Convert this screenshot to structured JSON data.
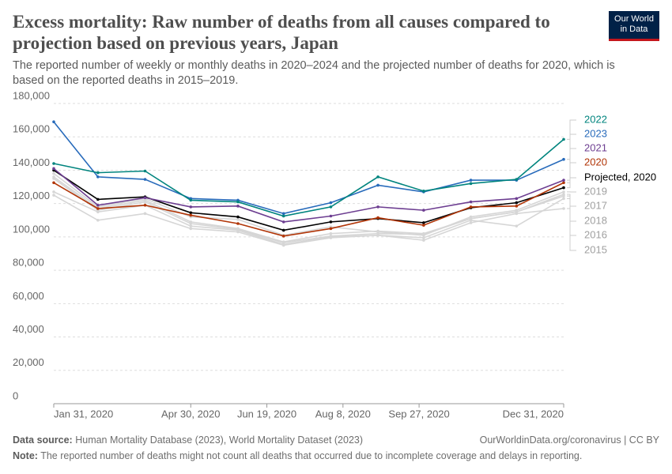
{
  "header": {
    "title": "Excess mortality: Raw number of deaths from all causes compared to projection based on previous years, Japan",
    "subtitle": "The reported number of weekly or monthly deaths in 2020–2024 and the projected number of deaths for 2020, which is based on the reported deaths in 2015–2019.",
    "logo": [
      "Our World",
      "in Data"
    ]
  },
  "chart_data": {
    "type": "line",
    "x": [
      "2020-01-31",
      "2020-02-29",
      "2020-03-31",
      "2020-04-30",
      "2020-05-31",
      "2020-06-30",
      "2020-07-31",
      "2020-08-31",
      "2020-09-30",
      "2020-10-31",
      "2020-11-30",
      "2020-12-31"
    ],
    "xlim": [
      "2020-01-31",
      "2020-12-31"
    ],
    "xticks": [
      {
        "value": "2020-01-31",
        "label": "Jan 31, 2020"
      },
      {
        "value": "2020-04-30",
        "label": "Apr 30, 2020"
      },
      {
        "value": "2020-06-19",
        "label": "Jun 19, 2020"
      },
      {
        "value": "2020-08-08",
        "label": "Aug 8, 2020"
      },
      {
        "value": "2020-09-27",
        "label": "Sep 27, 2020"
      },
      {
        "value": "2020-12-31",
        "label": "Dec 31, 2020"
      }
    ],
    "ylim": [
      0,
      180000
    ],
    "yticks": [
      0,
      {
        "value": 20000,
        "label": "20,000"
      },
      {
        "value": 40000,
        "label": "40,000"
      },
      {
        "value": 60000,
        "label": "60,000"
      },
      {
        "value": 80000,
        "label": "80,000"
      },
      {
        "value": 100000,
        "label": "100,000"
      },
      {
        "value": 120000,
        "label": "120,000"
      },
      {
        "value": 140000,
        "label": "140,000"
      },
      {
        "value": 160000,
        "label": "160,000"
      },
      {
        "value": 180000,
        "label": "180,000"
      }
    ],
    "grid": true,
    "series": [
      {
        "name": "2022",
        "color": "#00847e",
        "values": [
          144000,
          138500,
          139500,
          122000,
          121000,
          112500,
          118000,
          136000,
          127500,
          132000,
          134500,
          158500
        ]
      },
      {
        "name": "2023",
        "color": "#286bbb",
        "values": [
          169000,
          136000,
          134500,
          123000,
          122000,
          114000,
          120500,
          131000,
          127000,
          134000,
          134000,
          146500
        ]
      },
      {
        "name": "2021",
        "color": "#6d3e91",
        "values": [
          141000,
          119000,
          123500,
          118000,
          118500,
          109000,
          112500,
          118000,
          116000,
          121000,
          123000,
          134000
        ]
      },
      {
        "name": "2020",
        "color": "#b13507",
        "values": [
          132500,
          117000,
          119000,
          113000,
          108000,
          100500,
          105000,
          111500,
          107000,
          118000,
          118500,
          132500
        ]
      },
      {
        "name": "Projected, 2020",
        "color": "#000000",
        "values": [
          140000,
          122500,
          124000,
          114500,
          112000,
          104000,
          109000,
          111000,
          108500,
          117500,
          120500,
          129500
        ]
      },
      {
        "name": "2019",
        "color": "#d6d6d6",
        "values": [
          138000,
          118000,
          123000,
          112000,
          110500,
          101000,
          106000,
          103000,
          101000,
          112000,
          116000,
          127000
        ]
      },
      {
        "name": "2017",
        "color": "#d6d6d6",
        "values": [
          136000,
          117000,
          122000,
          109000,
          105000,
          97000,
          102000,
          103500,
          102000,
          111000,
          115000,
          125500
        ]
      },
      {
        "name": "2018",
        "color": "#d6d6d6",
        "values": [
          135000,
          116000,
          121000,
          108000,
          104500,
          96500,
          100500,
          102000,
          101500,
          111000,
          115000,
          124500
        ]
      },
      {
        "name": "2016",
        "color": "#d6d6d6",
        "values": [
          127000,
          115000,
          119000,
          106500,
          104000,
          95500,
          100000,
          101000,
          99500,
          110000,
          106500,
          123000
        ]
      },
      {
        "name": "2015",
        "color": "#d6d6d6",
        "values": [
          125000,
          110000,
          114000,
          105000,
          103000,
          95000,
          99500,
          101000,
          98000,
          108500,
          114000,
          117000
        ]
      }
    ]
  },
  "footer": {
    "source_label": "Data source:",
    "source": "Human Mortality Database (2023), World Mortality Dataset (2023)",
    "link": "OurWorldinData.org/coronavirus | CC BY",
    "note_label": "Note:",
    "note": "The reported number of deaths might not count all deaths that occurred due to incomplete coverage and delays in reporting."
  }
}
